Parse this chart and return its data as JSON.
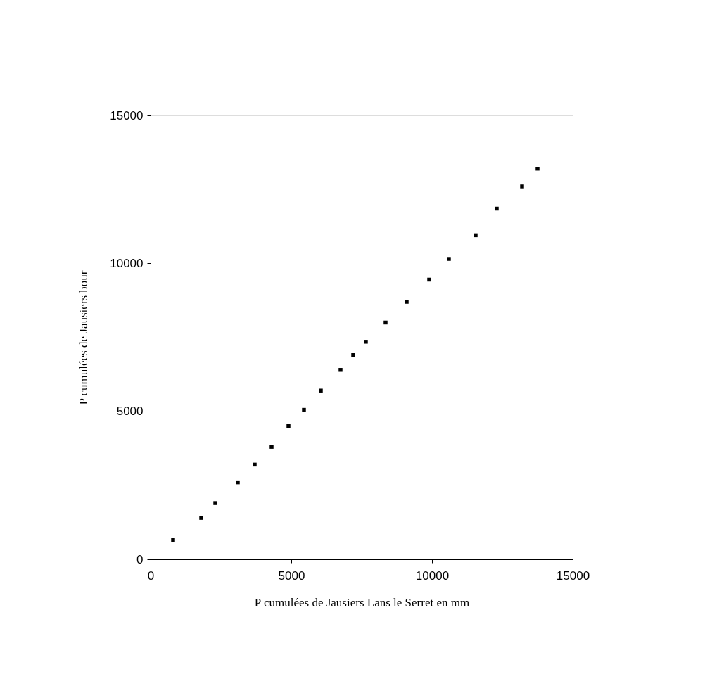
{
  "chart_data": {
    "type": "scatter",
    "xlabel": "P cumulées de Jausiers Lans le Serret en mm",
    "ylabel": "P cumulées de Jausiers bour",
    "x": [
      800,
      1800,
      2300,
      3100,
      3700,
      4300,
      4900,
      5450,
      6050,
      6750,
      7200,
      7650,
      8350,
      9100,
      9900,
      10600,
      11550,
      12300,
      13200,
      13750
    ],
    "series": [
      {
        "color": "#000000",
        "values": [
          650,
          1400,
          1900,
          2600,
          3200,
          3800,
          4500,
          5050,
          5700,
          6400,
          6900,
          7350,
          8000,
          8700,
          9450,
          10150,
          10950,
          11850,
          12600,
          13200
        ]
      }
    ],
    "xlim": [
      0,
      15000
    ],
    "ylim": [
      0,
      15000
    ],
    "xticks": [
      0,
      5000,
      10000,
      15000
    ],
    "yticks": [
      0,
      5000,
      10000,
      15000
    ],
    "grid": false,
    "marker": "square"
  }
}
